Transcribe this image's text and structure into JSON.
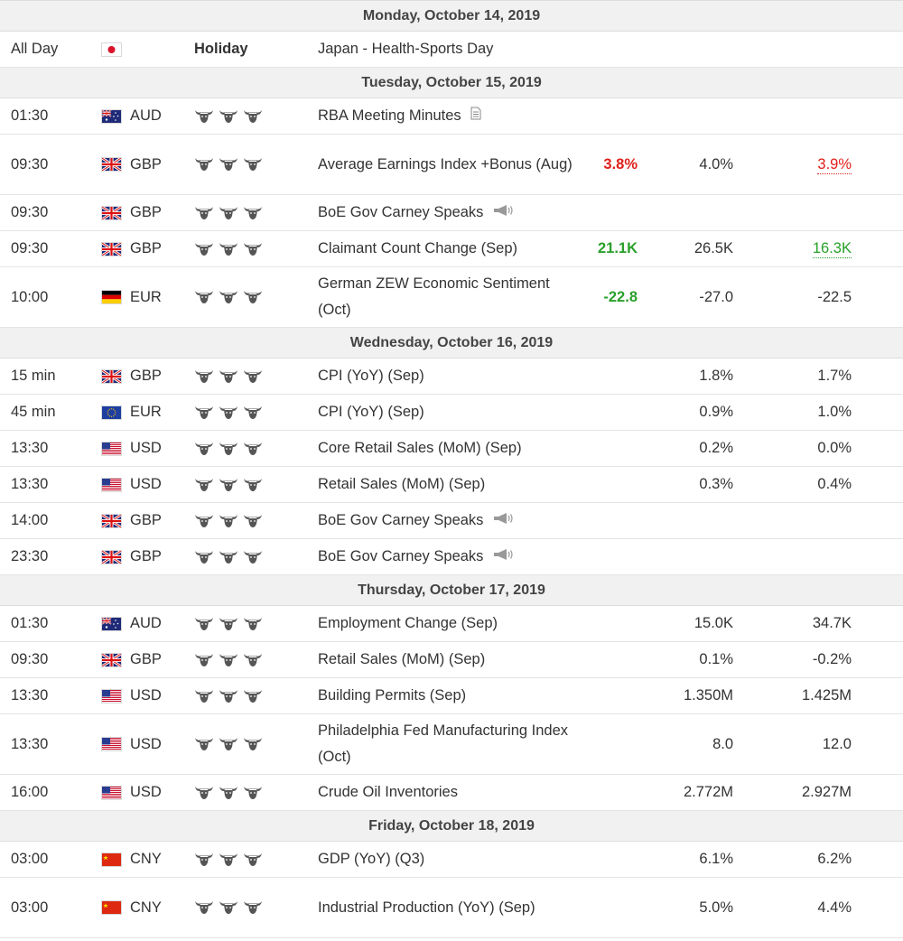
{
  "days": [
    {
      "date": "Monday, October 14, 2019",
      "rows": [
        {
          "time": "All Day",
          "flag": "jp",
          "currency": "",
          "holiday": "Holiday",
          "event": "Japan - Health-Sports Day",
          "actual": "",
          "forecast": "",
          "previous": "",
          "h": 40
        }
      ]
    },
    {
      "date": "Tuesday, October 15, 2019",
      "rows": [
        {
          "time": "01:30",
          "flag": "au",
          "currency": "AUD",
          "event": "RBA Meeting Minutes",
          "icon": "document-icon",
          "actual": "",
          "forecast": "",
          "previous": "",
          "h": 40
        },
        {
          "time": "09:30",
          "flag": "gb",
          "currency": "GBP",
          "event": "Average Earnings Index +Bonus (Aug)",
          "actual": "3.8%",
          "actual_color": "red",
          "forecast": "4.0%",
          "previous": "3.9%",
          "previous_color": "red",
          "previous_revised": true,
          "h": 67
        },
        {
          "time": "09:30",
          "flag": "gb",
          "currency": "GBP",
          "event": "BoE Gov Carney Speaks",
          "icon": "speaker-icon",
          "actual": "",
          "forecast": "",
          "previous": "",
          "h": 40
        },
        {
          "time": "09:30",
          "flag": "gb",
          "currency": "GBP",
          "event": "Claimant Count Change (Sep)",
          "actual": "21.1K",
          "actual_color": "green",
          "forecast": "26.5K",
          "previous": "16.3K",
          "previous_color": "green",
          "previous_revised": true,
          "h": 40
        },
        {
          "time": "10:00",
          "flag": "de",
          "currency": "EUR",
          "event": "German ZEW Economic Sentiment (Oct)",
          "actual": "-22.8",
          "actual_color": "green",
          "forecast": "-27.0",
          "previous": "-22.5",
          "h": 67
        }
      ]
    },
    {
      "date": "Wednesday, October 16, 2019",
      "rows": [
        {
          "time": "15 min",
          "flag": "gb",
          "currency": "GBP",
          "event": "CPI (YoY) (Sep)",
          "actual": "",
          "forecast": "1.8%",
          "previous": "1.7%",
          "h": 40
        },
        {
          "time": "45 min",
          "flag": "eu",
          "currency": "EUR",
          "event": "CPI (YoY) (Sep)",
          "actual": "",
          "forecast": "0.9%",
          "previous": "1.0%",
          "h": 40
        },
        {
          "time": "13:30",
          "flag": "us",
          "currency": "USD",
          "event": "Core Retail Sales (MoM) (Sep)",
          "actual": "",
          "forecast": "0.2%",
          "previous": "0.0%",
          "h": 40
        },
        {
          "time": "13:30",
          "flag": "us",
          "currency": "USD",
          "event": "Retail Sales (MoM) (Sep)",
          "actual": "",
          "forecast": "0.3%",
          "previous": "0.4%",
          "h": 40
        },
        {
          "time": "14:00",
          "flag": "gb",
          "currency": "GBP",
          "event": "BoE Gov Carney Speaks",
          "icon": "speaker-icon",
          "actual": "",
          "forecast": "",
          "previous": "",
          "h": 40
        },
        {
          "time": "23:30",
          "flag": "gb",
          "currency": "GBP",
          "event": "BoE Gov Carney Speaks",
          "icon": "speaker-icon",
          "actual": "",
          "forecast": "",
          "previous": "",
          "h": 40
        }
      ]
    },
    {
      "date": "Thursday, October 17, 2019",
      "rows": [
        {
          "time": "01:30",
          "flag": "au",
          "currency": "AUD",
          "event": "Employment Change (Sep)",
          "actual": "",
          "forecast": "15.0K",
          "previous": "34.7K",
          "h": 40
        },
        {
          "time": "09:30",
          "flag": "gb",
          "currency": "GBP",
          "event": "Retail Sales (MoM) (Sep)",
          "actual": "",
          "forecast": "0.1%",
          "previous": "-0.2%",
          "h": 40
        },
        {
          "time": "13:30",
          "flag": "us",
          "currency": "USD",
          "event": "Building Permits (Sep)",
          "actual": "",
          "forecast": "1.350M",
          "previous": "1.425M",
          "h": 40
        },
        {
          "time": "13:30",
          "flag": "us",
          "currency": "USD",
          "event": "Philadelphia Fed Manufacturing Index (Oct)",
          "actual": "",
          "forecast": "8.0",
          "previous": "12.0",
          "h": 67
        },
        {
          "time": "16:00",
          "flag": "us",
          "currency": "USD",
          "event": "Crude Oil Inventories",
          "actual": "",
          "forecast": "2.772M",
          "previous": "2.927M",
          "h": 40
        }
      ]
    },
    {
      "date": "Friday, October 18, 2019",
      "rows": [
        {
          "time": "03:00",
          "flag": "cn",
          "currency": "CNY",
          "event": "GDP (YoY) (Q3)",
          "actual": "",
          "forecast": "6.1%",
          "previous": "6.2%",
          "h": 40
        },
        {
          "time": "03:00",
          "flag": "cn",
          "currency": "CNY",
          "event": "Industrial Production (YoY) (Sep)",
          "actual": "",
          "forecast": "5.0%",
          "previous": "4.4%",
          "h": 67
        }
      ]
    }
  ],
  "importance_icon": "bull-icon",
  "importance_count": 3,
  "colors": {
    "red": "#e0201b",
    "green": "#2aa02a",
    "header_bg": "#f1f1f1",
    "bull": "#555555"
  }
}
